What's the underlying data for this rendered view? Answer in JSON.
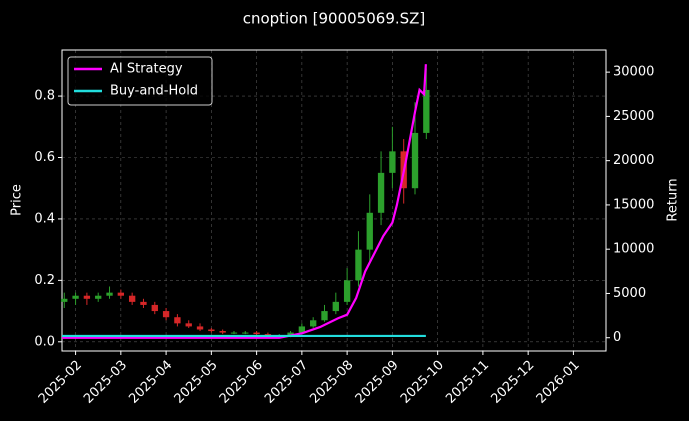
{
  "chart_data": {
    "type": "candlestick",
    "title": "cnoption [90005069.SZ]",
    "ylabel": "Price",
    "y2label": "Return",
    "xlim": [
      -0.3,
      11.72
    ],
    "ylim": [
      -0.03,
      0.95
    ],
    "y2lim": [
      -1500,
      32500
    ],
    "xticks": [
      {
        "value": 0,
        "label": "2025-02"
      },
      {
        "value": 1,
        "label": "2025-03"
      },
      {
        "value": 2,
        "label": "2025-04"
      },
      {
        "value": 3,
        "label": "2025-05"
      },
      {
        "value": 4,
        "label": "2025-06"
      },
      {
        "value": 5,
        "label": "2025-07"
      },
      {
        "value": 6,
        "label": "2025-08"
      },
      {
        "value": 7,
        "label": "2025-09"
      },
      {
        "value": 8,
        "label": "2025-10"
      },
      {
        "value": 9,
        "label": "2025-11"
      },
      {
        "value": 10,
        "label": "2025-12"
      },
      {
        "value": 11,
        "label": "2026-01"
      }
    ],
    "yticks": [
      {
        "value": 0,
        "label": "0.0"
      },
      0.2,
      0.4,
      0.6,
      0.8
    ],
    "y2ticks": [
      0,
      5000,
      10000,
      15000,
      20000,
      25000,
      30000
    ],
    "grid": true,
    "legend": "upper left",
    "up_color": "#2ca02c",
    "down_color": "#d62728",
    "x": [
      -0.25,
      0,
      0.25,
      0.5,
      0.75,
      1,
      1.25,
      1.5,
      1.75,
      2,
      2.25,
      2.5,
      2.75,
      3,
      3.25,
      3.5,
      3.75,
      4,
      4.25,
      4.5,
      4.75,
      5,
      5.25,
      5.5,
      5.75,
      6,
      6.25,
      6.5,
      6.75,
      7,
      7.25,
      7.5,
      7.75
    ],
    "open": [
      0.13,
      0.14,
      0.15,
      0.14,
      0.15,
      0.16,
      0.15,
      0.13,
      0.12,
      0.1,
      0.08,
      0.06,
      0.05,
      0.04,
      0.035,
      0.03,
      0.03,
      0.03,
      0.025,
      0.02,
      0.02,
      0.03,
      0.05,
      0.07,
      0.1,
      0.13,
      0.2,
      0.3,
      0.42,
      0.55,
      0.62,
      0.5,
      0.68
    ],
    "high": [
      0.16,
      0.16,
      0.16,
      0.16,
      0.18,
      0.17,
      0.16,
      0.14,
      0.13,
      0.11,
      0.09,
      0.07,
      0.06,
      0.045,
      0.04,
      0.035,
      0.035,
      0.035,
      0.03,
      0.025,
      0.035,
      0.06,
      0.08,
      0.12,
      0.16,
      0.24,
      0.36,
      0.48,
      0.62,
      0.7,
      0.66,
      0.78,
      0.89
    ],
    "low": [
      0.11,
      0.12,
      0.12,
      0.13,
      0.14,
      0.14,
      0.12,
      0.11,
      0.09,
      0.07,
      0.05,
      0.045,
      0.035,
      0.03,
      0.025,
      0.025,
      0.025,
      0.02,
      0.015,
      0.015,
      0.015,
      0.025,
      0.045,
      0.065,
      0.09,
      0.12,
      0.18,
      0.26,
      0.38,
      0.5,
      0.45,
      0.48,
      0.66
    ],
    "close": [
      0.14,
      0.15,
      0.14,
      0.15,
      0.16,
      0.15,
      0.13,
      0.12,
      0.1,
      0.08,
      0.06,
      0.05,
      0.04,
      0.035,
      0.03,
      0.03,
      0.03,
      0.025,
      0.02,
      0.02,
      0.03,
      0.05,
      0.07,
      0.1,
      0.13,
      0.2,
      0.3,
      0.42,
      0.55,
      0.62,
      0.5,
      0.68,
      0.82
    ],
    "series": [
      {
        "name": "AI Strategy",
        "color": "#ff00ff",
        "axis": "y2",
        "x": [
          -0.3,
          4.5,
          5.0,
          5.4,
          5.8,
          6.0,
          6.2,
          6.4,
          6.6,
          6.8,
          7.0,
          7.1,
          7.3,
          7.5,
          7.6,
          7.7,
          7.74
        ],
        "values": [
          0,
          0,
          500,
          1200,
          2200,
          2600,
          4500,
          7500,
          9500,
          11500,
          13000,
          15000,
          20000,
          25500,
          28000,
          27500,
          30900
        ]
      },
      {
        "name": "Buy-and-Hold",
        "color": "#22dddd",
        "axis": "y2",
        "x": [
          -0.3,
          7.74
        ],
        "values": [
          200,
          200
        ]
      }
    ]
  }
}
